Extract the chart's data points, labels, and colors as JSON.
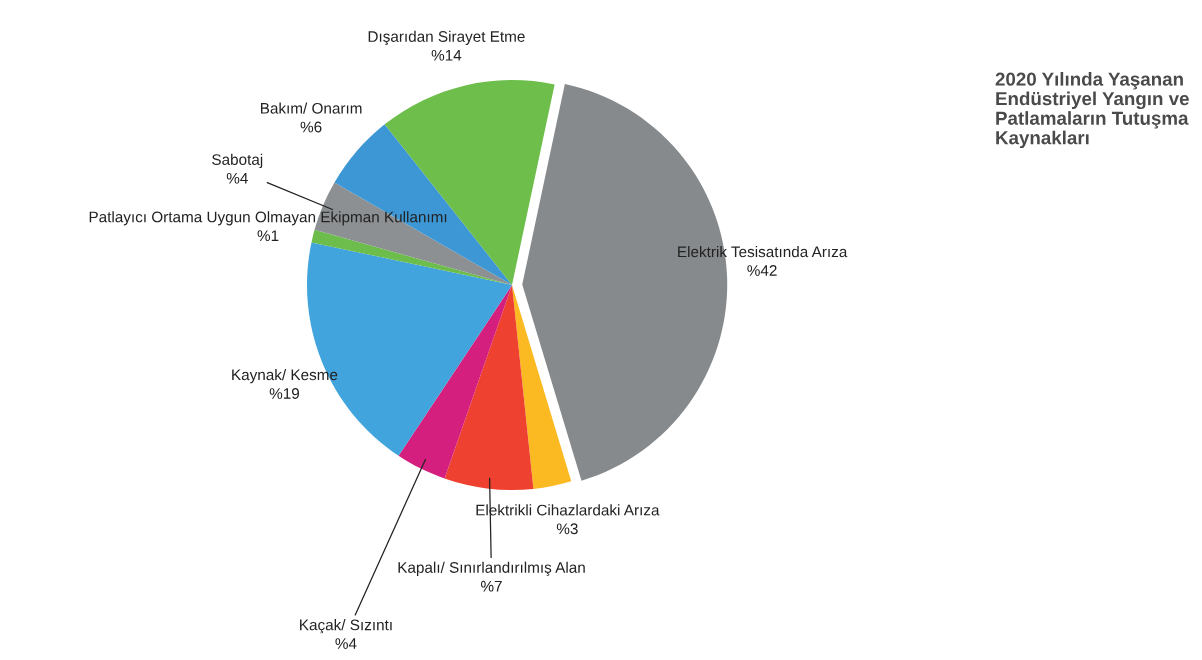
{
  "chart_data": {
    "type": "pie",
    "title": "2020 Yılında Yaşanan Endüstriyel Yangın ve Patlamaların Tutuşma Kaynakları",
    "categories": [
      "Elektrik Tesisatında Arıza",
      "Elektrikli Cihazlardaki Arıza",
      "Kapalı/ Sınırlandırılmış Alan",
      "Kaçak/ Sızıntı",
      "Kaynak/ Kesme",
      "Patlayıcı Ortama Uygun Olmayan Ekipman Kullanımı",
      "Sabotaj",
      "Bakım/ Onarım",
      "Dışarıdan Sirayet Etme"
    ],
    "values": [
      42,
      3,
      7,
      4,
      19,
      1,
      4,
      6,
      14
    ],
    "value_labels": [
      "%42",
      "%3",
      "%7",
      "%4",
      "%19",
      "%1",
      "%4",
      "%6",
      "%14"
    ],
    "colors": [
      "#878a8c",
      "#fbba22",
      "#ee4130",
      "#d51f7f",
      "#41a4dc",
      "#6cbd4c",
      "#8d9093",
      "#3d97d5",
      "#6dbe4b"
    ],
    "legend": false
  }
}
